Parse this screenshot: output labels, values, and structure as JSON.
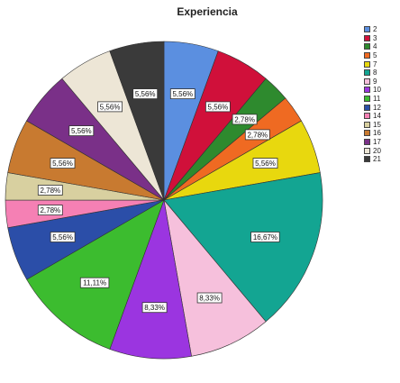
{
  "chart_data": {
    "type": "pie",
    "title": "Experiencia",
    "slices": [
      {
        "name": "2",
        "value": 5.56,
        "label": "5,56%",
        "color": "#5b8fe0"
      },
      {
        "name": "3",
        "value": 5.56,
        "label": "5,56%",
        "color": "#d0103a"
      },
      {
        "name": "4",
        "value": 2.78,
        "label": "2,78%",
        "color": "#2e8a2e"
      },
      {
        "name": "5",
        "value": 2.78,
        "label": "2,78%",
        "color": "#ef6a22"
      },
      {
        "name": "7",
        "value": 5.56,
        "label": "5,56%",
        "color": "#e8d80e"
      },
      {
        "name": "8",
        "value": 16.67,
        "label": "16,67%",
        "color": "#13a592"
      },
      {
        "name": "9",
        "value": 8.33,
        "label": "8,33%",
        "color": "#f6c0dc"
      },
      {
        "name": "10",
        "value": 8.33,
        "label": "8,33%",
        "color": "#9b35e0"
      },
      {
        "name": "11",
        "value": 11.11,
        "label": "11,11%",
        "color": "#3cbc2f"
      },
      {
        "name": "12",
        "value": 5.56,
        "label": "5,56%",
        "color": "#2b4ea8"
      },
      {
        "name": "14",
        "value": 2.78,
        "label": "2,78%",
        "color": "#f580b4"
      },
      {
        "name": "15",
        "value": 2.78,
        "label": "2,78%",
        "color": "#d8d0a0"
      },
      {
        "name": "16",
        "value": 5.56,
        "label": "5,56%",
        "color": "#c87a30"
      },
      {
        "name": "17",
        "value": 5.56,
        "label": "5,56%",
        "color": "#7a3088"
      },
      {
        "name": "20",
        "value": 5.56,
        "label": "5,56%",
        "color": "#ede6d6"
      },
      {
        "name": "21",
        "value": 5.56,
        "label": "5,56%",
        "color": "#3a3a3a"
      }
    ],
    "legend": "right"
  }
}
